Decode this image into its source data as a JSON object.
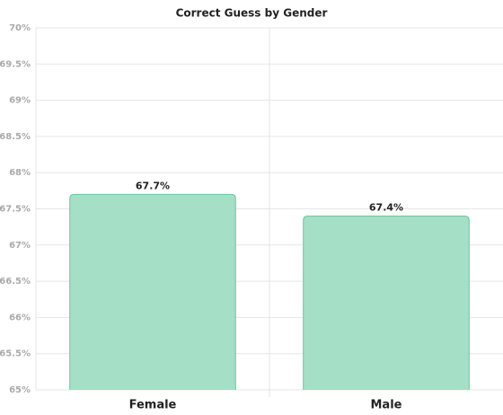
{
  "chart_data": {
    "type": "bar",
    "title": "Correct Guess by Gender",
    "categories": [
      "Female",
      "Male"
    ],
    "values": [
      67.7,
      67.4
    ],
    "value_labels": [
      "67.7%",
      "67.4%"
    ],
    "color": "#a5dfc5",
    "ylim": [
      65,
      70
    ],
    "yticks": [
      {
        "value": 65,
        "label": "65%"
      },
      {
        "value": 65.5,
        "label": "65.5%"
      },
      {
        "value": 66,
        "label": "66%"
      },
      {
        "value": 66.5,
        "label": "66.5%"
      },
      {
        "value": 67,
        "label": "67%"
      },
      {
        "value": 67.5,
        "label": "67.5%"
      },
      {
        "value": 68,
        "label": "68%"
      },
      {
        "value": 68.5,
        "label": "68.5%"
      },
      {
        "value": 69,
        "label": "69%"
      },
      {
        "value": 69.5,
        "label": "69.5%"
      },
      {
        "value": 70,
        "label": "70%"
      }
    ],
    "grid": true
  }
}
